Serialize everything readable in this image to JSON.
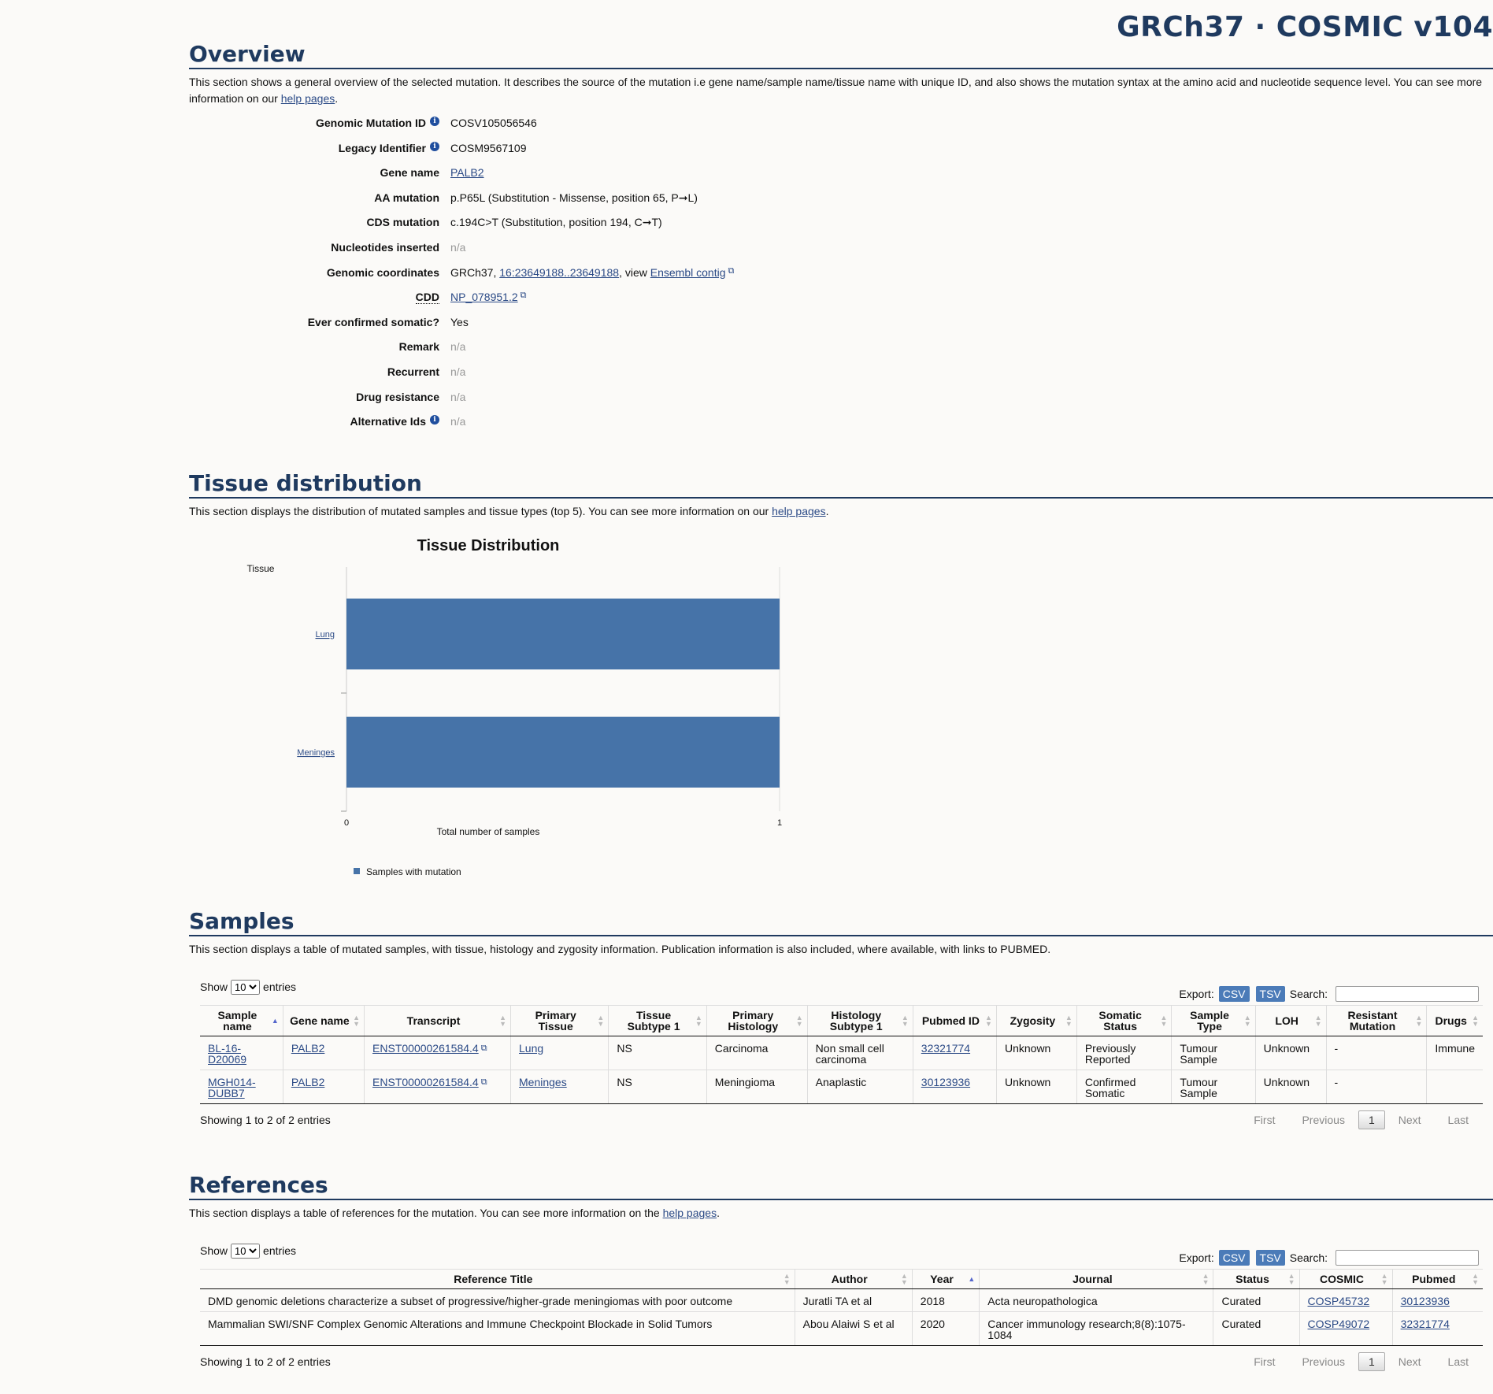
{
  "brand": "GRCh37 · COSMIC v104",
  "overview": {
    "title": "Overview",
    "desc_before": "This section shows a general overview of the selected mutation. It describes the source of the mutation i.e gene name/sample name/tissue name with unique ID, and also shows the mutation syntax at the amino acid and nucleotide sequence level. You can see more information on our ",
    "help_link": "help pages",
    "desc_after": ".",
    "rows": {
      "genomic_mutation_id": {
        "label": "Genomic Mutation ID",
        "value": "COSV105056546"
      },
      "legacy_identifier": {
        "label": "Legacy Identifier",
        "value": "COSM9567109"
      },
      "gene_name": {
        "label": "Gene name",
        "value": "PALB2"
      },
      "aa_mutation": {
        "label": "AA mutation",
        "value": "p.P65L (Substitution - Missense, position 65, P➞L)"
      },
      "cds_mutation": {
        "label": "CDS mutation",
        "value": "c.194C>T (Substitution, position 194, C➞T)"
      },
      "nucleotides_inserted": {
        "label": "Nucleotides inserted",
        "value": "n/a"
      },
      "genomic_coordinates": {
        "label": "Genomic coordinates",
        "prefix": "GRCh37, ",
        "coord_link": "16:23649188..23649188",
        "middle": ", view ",
        "ensembl_link": "Ensembl contig"
      },
      "cdd": {
        "label": "CDD",
        "value": "NP_078951.2"
      },
      "ever_confirmed": {
        "label": "Ever confirmed somatic?",
        "value": "Yes"
      },
      "remark": {
        "label": "Remark",
        "value": "n/a"
      },
      "recurrent": {
        "label": "Recurrent",
        "value": "n/a"
      },
      "drug_resistance": {
        "label": "Drug resistance",
        "value": "n/a"
      },
      "alternative_ids": {
        "label": "Alternative Ids",
        "value": "n/a"
      }
    }
  },
  "tissue": {
    "title": "Tissue distribution",
    "desc_before": "This section displays the distribution of mutated samples and tissue types (top 5). You can see more information on our ",
    "help_link": "help pages",
    "desc_after": "."
  },
  "chart_data": {
    "type": "bar",
    "orientation": "horizontal",
    "title": "Tissue Distribution",
    "ylabel": "Tissue",
    "xlabel": "Total number of samples",
    "categories": [
      "Lung",
      "Meninges"
    ],
    "series": [
      {
        "name": "Samples with mutation",
        "values": [
          1,
          1
        ],
        "color": "#4673a8"
      }
    ],
    "xlim": [
      0,
      1
    ],
    "xticks": [
      "0",
      "1"
    ],
    "legend_position": "bottom-left",
    "grid": false
  },
  "samples": {
    "title": "Samples",
    "desc": "This section displays a table of mutated samples, with tissue, histology and zygosity information. Publication information is also included, where available, with links to PUBMED.",
    "show_label": "Show",
    "show_value": "10",
    "entries_label": "entries",
    "export_label": "Export:",
    "csv": "CSV",
    "tsv": "TSV",
    "search_label": "Search:",
    "columns": [
      "Sample name",
      "Gene name",
      "Transcript",
      "Primary Tissue",
      "Tissue Subtype 1",
      "Primary Histology",
      "Histology Subtype 1",
      "Pubmed ID",
      "Zygosity",
      "Somatic Status",
      "Sample Type",
      "LOH",
      "Resistant Mutation",
      "Drugs"
    ],
    "rows": [
      [
        "BL-16-D20069",
        "PALB2",
        "ENST00000261584.4",
        "Lung",
        "NS",
        "Carcinoma",
        "Non small cell carcinoma",
        "32321774",
        "Unknown",
        "Previously Reported",
        "Tumour Sample",
        "Unknown",
        "-",
        "Immune"
      ],
      [
        "MGH014-DUBB7",
        "PALB2",
        "ENST00000261584.4",
        "Meninges",
        "NS",
        "Meningioma",
        "Anaplastic",
        "30123936",
        "Unknown",
        "Confirmed Somatic",
        "Tumour Sample",
        "Unknown",
        "-",
        ""
      ]
    ],
    "info": "Showing 1 to 2 of 2 entries",
    "pager": {
      "first": "First",
      "previous": "Previous",
      "current": "1",
      "next": "Next",
      "last": "Last"
    }
  },
  "references": {
    "title": "References",
    "desc_before": "This section displays a table of references for the mutation. You can see more information on the ",
    "help_link": "help pages",
    "desc_after": ".",
    "show_label": "Show",
    "show_value": "10",
    "entries_label": "entries",
    "export_label": "Export:",
    "csv": "CSV",
    "tsv": "TSV",
    "search_label": "Search:",
    "columns": [
      "Reference Title",
      "Author",
      "Year",
      "Journal",
      "Status",
      "COSMIC",
      "Pubmed"
    ],
    "rows": [
      [
        "DMD genomic deletions characterize a subset of progressive/higher-grade meningiomas with poor outcome",
        "Juratli TA et al",
        "2018",
        "Acta neuropathologica",
        "Curated",
        "COSP45732",
        "30123936"
      ],
      [
        "Mammalian SWI/SNF Complex Genomic Alterations and Immune Checkpoint Blockade in Solid Tumors",
        "Abou Alaiwi S et al",
        "2020",
        "Cancer immunology research;8(8):1075-1084",
        "Curated",
        "COSP49072",
        "32321774"
      ]
    ],
    "info": "Showing 1 to 2 of 2 entries",
    "pager": {
      "first": "First",
      "previous": "Previous",
      "current": "1",
      "next": "Next",
      "last": "Last"
    }
  }
}
